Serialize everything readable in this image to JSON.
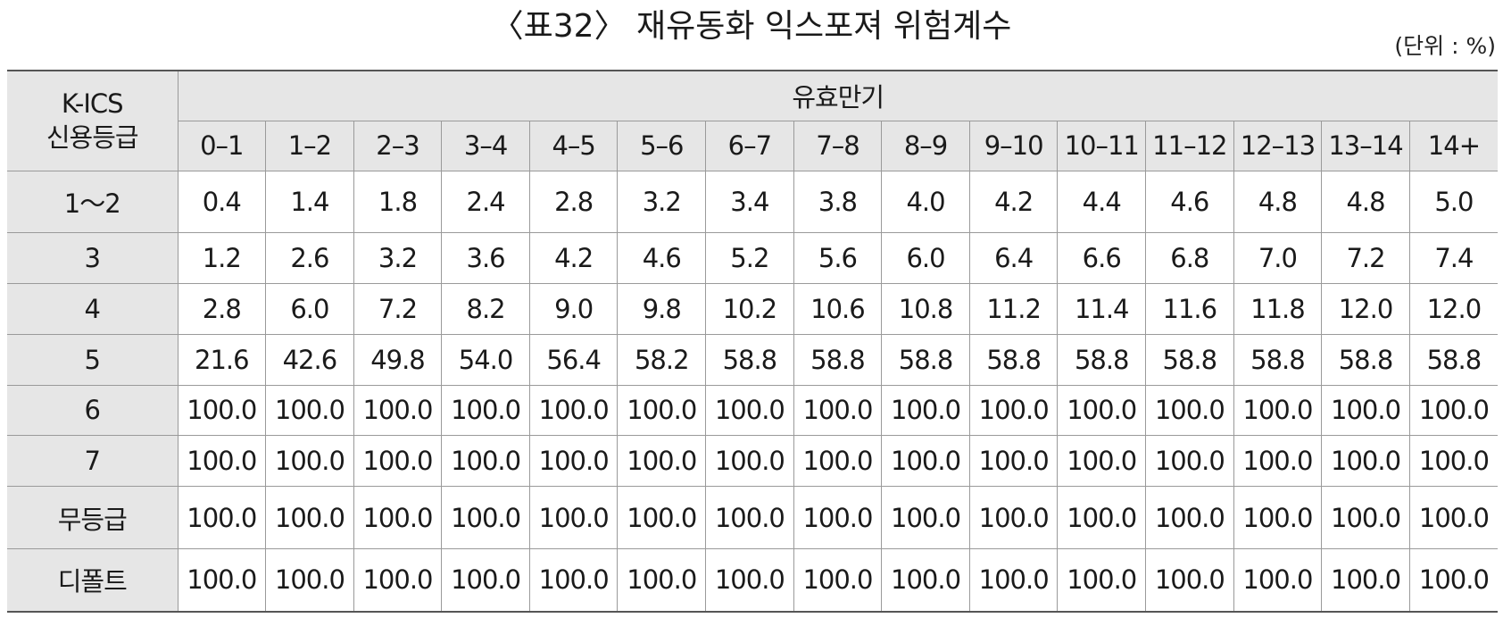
{
  "title": "〈표32〉 재유동화 익스포져 위험계수",
  "unit": "(단위 : %)",
  "header": {
    "row_label_line1": "K-ICS",
    "row_label_line2": "신용등급",
    "group_label": "유효만기",
    "maturities": [
      "0–1",
      "1–2",
      "2–3",
      "3–4",
      "4–5",
      "5–6",
      "6–7",
      "7–8",
      "8–9",
      "9–10",
      "10–11",
      "11–12",
      "12–13",
      "13–14",
      "14+"
    ]
  },
  "rows": [
    {
      "grade": "1～2",
      "values": [
        "0.4",
        "1.4",
        "1.8",
        "2.4",
        "2.8",
        "3.2",
        "3.4",
        "3.8",
        "4.0",
        "4.2",
        "4.4",
        "4.6",
        "4.8",
        "4.8",
        "5.0"
      ]
    },
    {
      "grade": "3",
      "values": [
        "1.2",
        "2.6",
        "3.2",
        "3.6",
        "4.2",
        "4.6",
        "5.2",
        "5.6",
        "6.0",
        "6.4",
        "6.6",
        "6.8",
        "7.0",
        "7.2",
        "7.4"
      ]
    },
    {
      "grade": "4",
      "values": [
        "2.8",
        "6.0",
        "7.2",
        "8.2",
        "9.0",
        "9.8",
        "10.2",
        "10.6",
        "10.8",
        "11.2",
        "11.4",
        "11.6",
        "11.8",
        "12.0",
        "12.0"
      ]
    },
    {
      "grade": "5",
      "values": [
        "21.6",
        "42.6",
        "49.8",
        "54.0",
        "56.4",
        "58.2",
        "58.8",
        "58.8",
        "58.8",
        "58.8",
        "58.8",
        "58.8",
        "58.8",
        "58.8",
        "58.8"
      ]
    },
    {
      "grade": "6",
      "values": [
        "100.0",
        "100.0",
        "100.0",
        "100.0",
        "100.0",
        "100.0",
        "100.0",
        "100.0",
        "100.0",
        "100.0",
        "100.0",
        "100.0",
        "100.0",
        "100.0",
        "100.0"
      ]
    },
    {
      "grade": "7",
      "values": [
        "100.0",
        "100.0",
        "100.0",
        "100.0",
        "100.0",
        "100.0",
        "100.0",
        "100.0",
        "100.0",
        "100.0",
        "100.0",
        "100.0",
        "100.0",
        "100.0",
        "100.0"
      ]
    },
    {
      "grade": "무등급",
      "values": [
        "100.0",
        "100.0",
        "100.0",
        "100.0",
        "100.0",
        "100.0",
        "100.0",
        "100.0",
        "100.0",
        "100.0",
        "100.0",
        "100.0",
        "100.0",
        "100.0",
        "100.0"
      ]
    },
    {
      "grade": "디폴트",
      "values": [
        "100.0",
        "100.0",
        "100.0",
        "100.0",
        "100.0",
        "100.0",
        "100.0",
        "100.0",
        "100.0",
        "100.0",
        "100.0",
        "100.0",
        "100.0",
        "100.0",
        "100.0"
      ]
    }
  ]
}
